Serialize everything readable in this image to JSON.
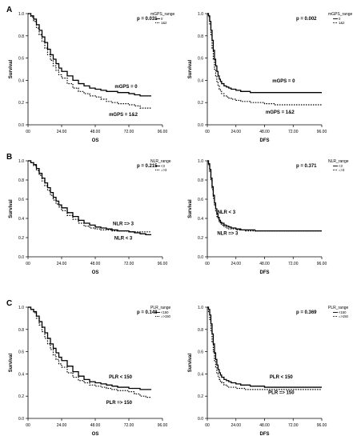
{
  "chart_data": [
    {
      "type": "line",
      "panel_letter": "A",
      "xlabel": "OS",
      "ylabel": "Survival",
      "p_value": "p = 0.031",
      "legend_title": "mGPS_range",
      "legend_entries": [
        "0",
        "1&2"
      ],
      "xticks": [
        "00",
        "24.00",
        "48.00",
        "72.00",
        "96.00"
      ],
      "yticks": [
        "0.0",
        "0.2",
        "0.4",
        "0.6",
        "0.8",
        "1.0"
      ],
      "xlim": [
        0,
        96
      ],
      "ylim": [
        0,
        1
      ],
      "annotations": [
        "mGPS = 0",
        "mGPS = 1&2"
      ],
      "series": [
        {
          "x": [
            0,
            2,
            4,
            6,
            8,
            10,
            12,
            14,
            16,
            18,
            20,
            22,
            24,
            28,
            32,
            36,
            40,
            44,
            48,
            52,
            56,
            60,
            64,
            68,
            72,
            76,
            80,
            84,
            88
          ],
          "y": [
            1.0,
            0.98,
            0.95,
            0.9,
            0.85,
            0.79,
            0.74,
            0.68,
            0.63,
            0.59,
            0.55,
            0.51,
            0.48,
            0.44,
            0.4,
            0.37,
            0.35,
            0.33,
            0.32,
            0.31,
            0.3,
            0.3,
            0.29,
            0.29,
            0.28,
            0.27,
            0.26,
            0.26,
            0.26
          ]
        },
        {
          "x": [
            0,
            2,
            4,
            6,
            8,
            10,
            12,
            14,
            16,
            18,
            20,
            22,
            24,
            28,
            32,
            36,
            40,
            44,
            48,
            52,
            56,
            60,
            64,
            68,
            72,
            76,
            80,
            84,
            88
          ],
          "y": [
            1.0,
            0.97,
            0.93,
            0.87,
            0.81,
            0.75,
            0.69,
            0.63,
            0.58,
            0.53,
            0.49,
            0.45,
            0.42,
            0.37,
            0.33,
            0.3,
            0.28,
            0.26,
            0.25,
            0.23,
            0.21,
            0.2,
            0.19,
            0.19,
            0.18,
            0.17,
            0.15,
            0.15,
            0.15
          ]
        }
      ]
    },
    {
      "type": "line",
      "panel_letter": "",
      "xlabel": "DFS",
      "ylabel": "Survival",
      "p_value": "p = 0.002",
      "legend_title": "mGPS_range",
      "legend_entries": [
        "0",
        "1&2"
      ],
      "xticks": [
        "00",
        "24.00",
        "48.00",
        "72.00",
        "96.00"
      ],
      "yticks": [
        "0.0",
        "0.2",
        "0.4",
        "0.6",
        "0.8",
        "1.0"
      ],
      "xlim": [
        0,
        96
      ],
      "ylim": [
        0,
        1
      ],
      "annotations": [
        "mGPS = 0",
        "mGPS = 1&2"
      ],
      "series": [
        {
          "x": [
            0,
            1,
            2,
            3,
            4,
            5,
            6,
            7,
            8,
            9,
            10,
            11,
            12,
            14,
            16,
            18,
            20,
            24,
            28,
            32,
            36,
            40,
            48,
            56,
            64,
            72,
            80,
            88,
            96
          ],
          "y": [
            1.0,
            0.98,
            0.93,
            0.85,
            0.76,
            0.67,
            0.59,
            0.53,
            0.48,
            0.44,
            0.41,
            0.39,
            0.37,
            0.35,
            0.34,
            0.33,
            0.32,
            0.31,
            0.3,
            0.3,
            0.29,
            0.29,
            0.29,
            0.29,
            0.29,
            0.29,
            0.29,
            0.29,
            0.29
          ]
        },
        {
          "x": [
            0,
            1,
            2,
            3,
            4,
            5,
            6,
            7,
            8,
            9,
            10,
            11,
            12,
            14,
            16,
            18,
            20,
            24,
            28,
            32,
            36,
            40,
            48,
            56,
            64,
            72,
            80,
            88,
            96
          ],
          "y": [
            1.0,
            0.97,
            0.9,
            0.8,
            0.69,
            0.59,
            0.5,
            0.44,
            0.39,
            0.35,
            0.32,
            0.3,
            0.28,
            0.26,
            0.25,
            0.24,
            0.23,
            0.22,
            0.21,
            0.21,
            0.2,
            0.2,
            0.19,
            0.18,
            0.18,
            0.18,
            0.18,
            0.18,
            0.18
          ]
        }
      ]
    },
    {
      "type": "line",
      "panel_letter": "B",
      "xlabel": "OS",
      "ylabel": "Survival",
      "p_value": "p = 0.215",
      "legend_title": "NLR_range",
      "legend_entries": [
        "<3",
        "=>3"
      ],
      "xticks": [
        "00",
        "24.00",
        "48.00",
        "72.00",
        "96.00"
      ],
      "yticks": [
        "0.0",
        "0.2",
        "0.4",
        "0.6",
        "0.8",
        "1.0"
      ],
      "xlim": [
        0,
        96
      ],
      "ylim": [
        0,
        1
      ],
      "annotations": [
        "NLR => 3",
        "NLR < 3"
      ],
      "series": [
        {
          "x": [
            0,
            2,
            4,
            6,
            8,
            10,
            12,
            14,
            16,
            18,
            20,
            22,
            24,
            28,
            32,
            36,
            40,
            44,
            48,
            52,
            56,
            60,
            64,
            68,
            72,
            76,
            80,
            84,
            88
          ],
          "y": [
            1.0,
            0.98,
            0.96,
            0.92,
            0.87,
            0.82,
            0.77,
            0.72,
            0.67,
            0.62,
            0.58,
            0.54,
            0.51,
            0.46,
            0.42,
            0.38,
            0.35,
            0.33,
            0.31,
            0.3,
            0.29,
            0.28,
            0.27,
            0.27,
            0.26,
            0.25,
            0.24,
            0.23,
            0.23
          ]
        },
        {
          "x": [
            0,
            2,
            4,
            6,
            8,
            10,
            12,
            14,
            16,
            18,
            20,
            22,
            24,
            28,
            32,
            36,
            40,
            44,
            48,
            52,
            56,
            60,
            64,
            68,
            72,
            76,
            80,
            84,
            88
          ],
          "y": [
            1.0,
            0.98,
            0.95,
            0.9,
            0.85,
            0.79,
            0.74,
            0.69,
            0.64,
            0.59,
            0.55,
            0.52,
            0.48,
            0.43,
            0.39,
            0.35,
            0.32,
            0.3,
            0.29,
            0.28,
            0.28,
            0.27,
            0.27,
            0.27,
            0.26,
            0.26,
            0.26,
            0.26,
            0.26
          ]
        }
      ]
    },
    {
      "type": "line",
      "panel_letter": "",
      "xlabel": "DFS",
      "ylabel": "Survival",
      "p_value": "p = 0.371",
      "legend_title": "NLR_range",
      "legend_entries": [
        "<3",
        "=>3"
      ],
      "xticks": [
        "00",
        "24.00",
        "48.00",
        "72.00",
        "96.00"
      ],
      "yticks": [
        "0.0",
        "0.2",
        "0.4",
        "0.6",
        "0.8",
        "1.0"
      ],
      "xlim": [
        0,
        96
      ],
      "ylim": [
        0,
        1
      ],
      "annotations": [
        "NLR < 3",
        "NLR => 3"
      ],
      "series": [
        {
          "x": [
            0,
            1,
            2,
            3,
            4,
            5,
            6,
            7,
            8,
            9,
            10,
            11,
            12,
            14,
            16,
            18,
            20,
            24,
            28,
            32,
            36,
            40,
            48,
            56,
            64,
            72,
            80,
            88,
            96
          ],
          "y": [
            1.0,
            0.97,
            0.91,
            0.82,
            0.73,
            0.64,
            0.56,
            0.5,
            0.45,
            0.41,
            0.38,
            0.36,
            0.35,
            0.33,
            0.32,
            0.31,
            0.3,
            0.29,
            0.28,
            0.28,
            0.28,
            0.27,
            0.27,
            0.27,
            0.27,
            0.27,
            0.27,
            0.27,
            0.27
          ]
        },
        {
          "x": [
            0,
            1,
            2,
            3,
            4,
            5,
            6,
            7,
            8,
            9,
            10,
            11,
            12,
            14,
            16,
            18,
            20,
            24,
            28,
            32,
            36,
            40,
            48,
            56,
            64,
            72,
            80,
            88,
            96
          ],
          "y": [
            1.0,
            0.96,
            0.89,
            0.79,
            0.7,
            0.61,
            0.53,
            0.47,
            0.42,
            0.39,
            0.36,
            0.34,
            0.33,
            0.31,
            0.3,
            0.29,
            0.29,
            0.28,
            0.28,
            0.27,
            0.27,
            0.27,
            0.27,
            0.27,
            0.27,
            0.27,
            0.27,
            0.27,
            0.27
          ]
        }
      ]
    },
    {
      "type": "line",
      "panel_letter": "C",
      "xlabel": "OS",
      "ylabel": "Survival",
      "p_value": "p = 0.148",
      "legend_title": "PLR_range",
      "legend_entries": [
        "<150",
        "=>150"
      ],
      "xticks": [
        "00",
        "24.00",
        "48.00",
        "72.00",
        "96.00"
      ],
      "yticks": [
        "0.0",
        "0.2",
        "0.4",
        "0.6",
        "0.8",
        "1.0"
      ],
      "xlim": [
        0,
        96
      ],
      "ylim": [
        0,
        1
      ],
      "annotations": [
        "PLR < 150",
        "PLR => 150"
      ],
      "series": [
        {
          "x": [
            0,
            2,
            4,
            6,
            8,
            10,
            12,
            14,
            16,
            18,
            20,
            22,
            24,
            28,
            32,
            36,
            40,
            44,
            48,
            52,
            56,
            60,
            64,
            68,
            72,
            76,
            80,
            84,
            88
          ],
          "y": [
            1.0,
            0.98,
            0.96,
            0.92,
            0.87,
            0.82,
            0.77,
            0.72,
            0.67,
            0.63,
            0.59,
            0.55,
            0.52,
            0.47,
            0.42,
            0.38,
            0.35,
            0.33,
            0.32,
            0.31,
            0.3,
            0.29,
            0.28,
            0.28,
            0.27,
            0.27,
            0.26,
            0.26,
            0.26
          ]
        },
        {
          "x": [
            0,
            2,
            4,
            6,
            8,
            10,
            12,
            14,
            16,
            18,
            20,
            22,
            24,
            28,
            32,
            36,
            40,
            44,
            48,
            52,
            56,
            60,
            64,
            68,
            72,
            76,
            80,
            84,
            88
          ],
          "y": [
            1.0,
            0.98,
            0.95,
            0.9,
            0.84,
            0.78,
            0.72,
            0.67,
            0.62,
            0.57,
            0.53,
            0.49,
            0.46,
            0.41,
            0.37,
            0.34,
            0.32,
            0.3,
            0.29,
            0.28,
            0.27,
            0.26,
            0.25,
            0.25,
            0.24,
            0.22,
            0.2,
            0.19,
            0.19
          ]
        }
      ]
    },
    {
      "type": "line",
      "panel_letter": "",
      "xlabel": "DFS",
      "ylabel": "Survival",
      "p_value": "p = 0.369",
      "legend_title": "PLR_range",
      "legend_entries": [
        "<150",
        "=>150"
      ],
      "xticks": [
        "00",
        "24.00",
        "48.00",
        "72.00",
        "96.00"
      ],
      "yticks": [
        "0.0",
        "0.2",
        "0.4",
        "0.6",
        "0.8",
        "1.0"
      ],
      "xlim": [
        0,
        96
      ],
      "ylim": [
        0,
        1
      ],
      "annotations": [
        "PLR < 150",
        "PLR => 150"
      ],
      "series": [
        {
          "x": [
            0,
            1,
            2,
            3,
            4,
            5,
            6,
            7,
            8,
            9,
            10,
            11,
            12,
            14,
            16,
            18,
            20,
            24,
            28,
            32,
            36,
            40,
            48,
            56,
            64,
            72,
            80,
            88,
            96
          ],
          "y": [
            1.0,
            0.98,
            0.93,
            0.85,
            0.76,
            0.67,
            0.59,
            0.53,
            0.48,
            0.44,
            0.41,
            0.39,
            0.37,
            0.35,
            0.34,
            0.33,
            0.32,
            0.31,
            0.3,
            0.3,
            0.29,
            0.29,
            0.28,
            0.28,
            0.28,
            0.28,
            0.28,
            0.28,
            0.28
          ]
        },
        {
          "x": [
            0,
            1,
            2,
            3,
            4,
            5,
            6,
            7,
            8,
            9,
            10,
            11,
            12,
            14,
            16,
            18,
            20,
            24,
            28,
            32,
            36,
            40,
            48,
            56,
            64,
            72,
            80,
            88,
            96
          ],
          "y": [
            1.0,
            0.96,
            0.89,
            0.79,
            0.69,
            0.6,
            0.52,
            0.46,
            0.41,
            0.38,
            0.35,
            0.33,
            0.32,
            0.3,
            0.29,
            0.28,
            0.28,
            0.27,
            0.27,
            0.26,
            0.26,
            0.26,
            0.26,
            0.26,
            0.26,
            0.26,
            0.26,
            0.26,
            0.26
          ]
        }
      ]
    }
  ]
}
